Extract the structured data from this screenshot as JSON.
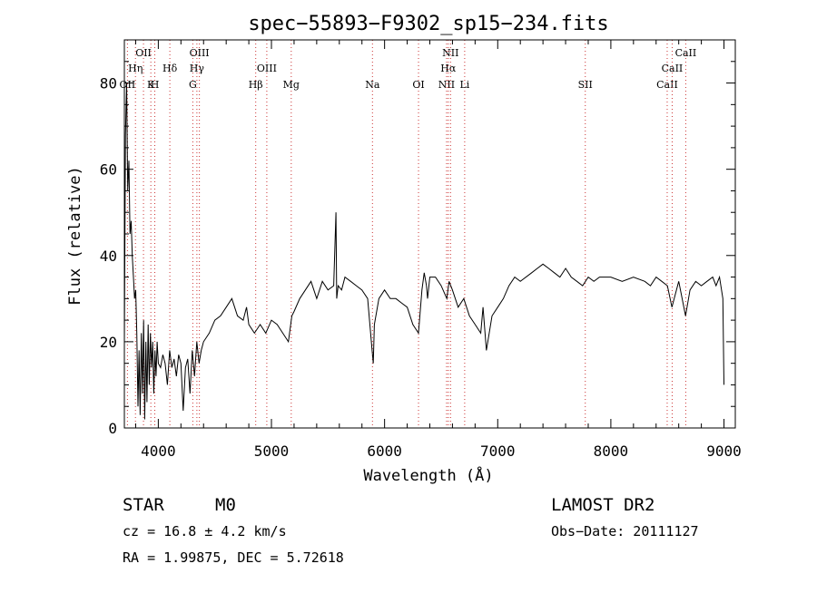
{
  "chart_data": {
    "type": "line",
    "title": "spec−55893−F9302_sp15−234.fits",
    "xlabel": "Wavelength (Å)",
    "ylabel": "Flux (relative)",
    "xlim": [
      3700,
      9100
    ],
    "ylim": [
      0,
      90
    ],
    "xticks": [
      4000,
      5000,
      6000,
      7000,
      8000,
      9000
    ],
    "yticks": [
      0,
      20,
      40,
      60,
      80
    ],
    "grid": false,
    "series": [
      {
        "x": [
          3700,
          3710,
          3720,
          3730,
          3740,
          3750,
          3760,
          3770,
          3780,
          3790,
          3800,
          3810,
          3820,
          3830,
          3840,
          3850,
          3860,
          3870,
          3880,
          3890,
          3900,
          3910,
          3920,
          3930,
          3940,
          3950,
          3960,
          3970,
          3980,
          3990,
          4000,
          4020,
          4040,
          4060,
          4080,
          4100,
          4120,
          4140,
          4160,
          4180,
          4200,
          4220,
          4240,
          4260,
          4280,
          4300,
          4320,
          4340,
          4360,
          4380,
          4400,
          4450,
          4500,
          4550,
          4600,
          4650,
          4700,
          4750,
          4780,
          4800,
          4850,
          4900,
          4950,
          5000,
          5050,
          5100,
          5150,
          5180,
          5200,
          5250,
          5300,
          5350,
          5400,
          5450,
          5500,
          5550,
          5570,
          5577,
          5590,
          5620,
          5650,
          5700,
          5750,
          5800,
          5850,
          5890,
          5900,
          5910,
          5950,
          6000,
          6050,
          6100,
          6150,
          6200,
          6250,
          6300,
          6330,
          6350,
          6370,
          6380,
          6400,
          6450,
          6500,
          6550,
          6570,
          6600,
          6650,
          6700,
          6750,
          6800,
          6850,
          6870,
          6900,
          6950,
          7000,
          7050,
          7100,
          7150,
          7200,
          7300,
          7350,
          7400,
          7450,
          7500,
          7550,
          7600,
          7650,
          7700,
          7750,
          7800,
          7850,
          7900,
          8000,
          8100,
          8200,
          8300,
          8350,
          8400,
          8450,
          8500,
          8540,
          8560,
          8600,
          8660,
          8700,
          8750,
          8800,
          8850,
          8900,
          8930,
          8960,
          8990,
          9000
        ],
        "y": [
          20,
          68,
          80,
          55,
          62,
          45,
          48,
          40,
          35,
          30,
          32,
          22,
          5,
          18,
          3,
          22,
          8,
          25,
          2,
          20,
          6,
          24,
          10,
          22,
          14,
          20,
          8,
          18,
          12,
          20,
          15,
          14,
          17,
          15,
          10,
          18,
          14,
          16,
          12,
          17,
          15,
          4,
          14,
          16,
          8,
          18,
          12,
          20,
          15,
          18,
          20,
          22,
          25,
          26,
          28,
          30,
          26,
          25,
          28,
          24,
          22,
          24,
          22,
          25,
          24,
          22,
          20,
          26,
          27,
          30,
          32,
          34,
          30,
          34,
          32,
          33,
          50,
          30,
          33,
          32,
          35,
          34,
          33,
          32,
          30,
          18,
          15,
          24,
          30,
          32,
          30,
          30,
          29,
          28,
          24,
          22,
          32,
          36,
          33,
          30,
          35,
          35,
          33,
          30,
          34,
          32,
          28,
          30,
          26,
          24,
          22,
          28,
          18,
          26,
          28,
          30,
          33,
          35,
          34,
          36,
          37,
          38,
          37,
          36,
          35,
          37,
          35,
          34,
          33,
          35,
          34,
          35,
          35,
          34,
          35,
          34,
          33,
          35,
          34,
          33,
          28,
          30,
          34,
          26,
          32,
          34,
          33,
          34,
          35,
          33,
          35,
          30,
          10
        ]
      }
    ],
    "lines": [
      {
        "x": 3727,
        "name": "OII"
      },
      {
        "x": 3798,
        "name": "Hη"
      },
      {
        "x": 3869,
        "name": "OII"
      },
      {
        "x": 3934,
        "name": "K"
      },
      {
        "x": 3969,
        "name": "H"
      },
      {
        "x": 4102,
        "name": "Hδ"
      },
      {
        "x": 4305,
        "name": "G"
      },
      {
        "x": 4341,
        "name": "Hγ"
      },
      {
        "x": 4363,
        "name": "OIII"
      },
      {
        "x": 4861,
        "name": "Hβ"
      },
      {
        "x": 4959,
        "name": "OIII"
      },
      {
        "x": 5175,
        "name": "Mg"
      },
      {
        "x": 5893,
        "name": "Na"
      },
      {
        "x": 6300,
        "name": "OI"
      },
      {
        "x": 6548,
        "name": "NII"
      },
      {
        "x": 6563,
        "name": "Hα"
      },
      {
        "x": 6583,
        "name": "NII"
      },
      {
        "x": 6708,
        "name": "Li"
      },
      {
        "x": 7774,
        "name": "SII"
      },
      {
        "x": 8498,
        "name": "CaII"
      },
      {
        "x": 8542,
        "name": "CaII"
      },
      {
        "x": 8662,
        "name": "CaII"
      }
    ]
  },
  "info": {
    "class": "STAR",
    "subclass": "M0",
    "survey": "LAMOST DR2",
    "cz": "cz = 16.8 ± 4.2 km/s",
    "obs_date": "Obs−Date: 20111127",
    "ra_dec": "RA =    1.99875, DEC =    5.72618"
  }
}
